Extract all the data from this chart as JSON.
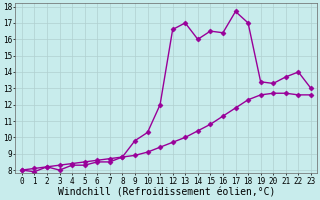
{
  "xlabel": "Windchill (Refroidissement éolien,°C)",
  "ylabel": "",
  "bg_color": "#c8ecec",
  "line_color": "#990099",
  "grid_color": "#b0d0d0",
  "xlim": [
    -0.5,
    23.5
  ],
  "ylim": [
    7.8,
    18.2
  ],
  "xticks": [
    0,
    1,
    2,
    3,
    4,
    5,
    6,
    7,
    8,
    9,
    10,
    11,
    12,
    13,
    14,
    15,
    16,
    17,
    18,
    19,
    20,
    21,
    22,
    23
  ],
  "yticks": [
    8,
    9,
    10,
    11,
    12,
    13,
    14,
    15,
    16,
    17,
    18
  ],
  "line1_x": [
    0,
    1,
    2,
    3,
    4,
    5,
    6,
    7,
    8,
    9,
    10,
    11,
    12,
    13,
    14,
    15,
    16,
    17,
    18,
    19,
    20,
    21,
    22,
    23
  ],
  "line1_y": [
    8.0,
    7.9,
    8.2,
    8.0,
    8.3,
    8.3,
    8.5,
    8.5,
    8.8,
    9.8,
    10.3,
    12.0,
    16.6,
    17.0,
    16.0,
    16.5,
    16.4,
    17.7,
    17.0,
    13.4,
    13.3,
    13.7,
    14.0,
    13.0
  ],
  "line2_x": [
    0,
    1,
    2,
    3,
    4,
    5,
    6,
    7,
    8,
    9,
    10,
    11,
    12,
    13,
    14,
    15,
    16,
    17,
    18,
    19,
    20,
    21,
    22,
    23
  ],
  "line2_y": [
    8.0,
    8.1,
    8.2,
    8.3,
    8.4,
    8.5,
    8.6,
    8.7,
    8.8,
    8.9,
    9.1,
    9.4,
    9.7,
    10.0,
    10.4,
    10.8,
    11.3,
    11.8,
    12.3,
    12.6,
    12.7,
    12.7,
    12.6,
    12.6
  ],
  "marker": "D",
  "markersize": 2.5,
  "linewidth": 1.0,
  "tick_fontsize": 5.5,
  "xlabel_fontsize": 7.0
}
